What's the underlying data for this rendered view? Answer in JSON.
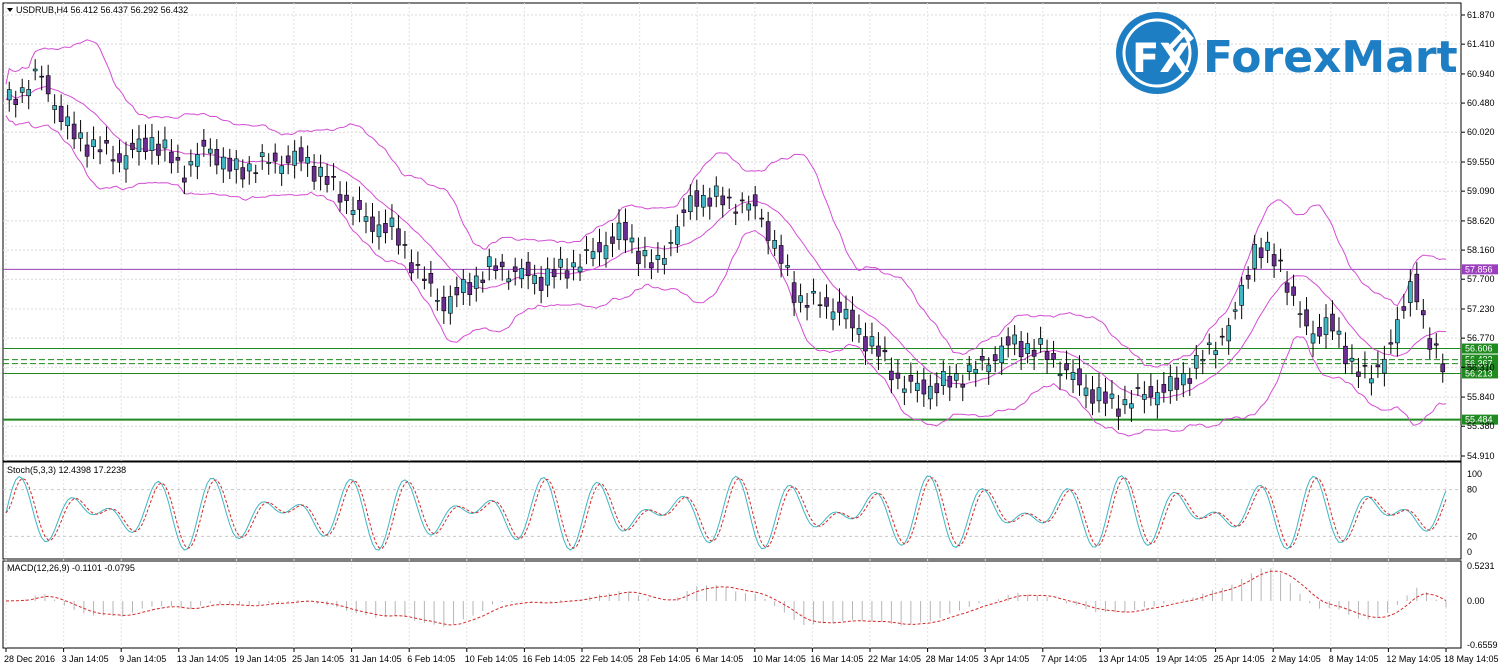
{
  "header": {
    "symbol_line": "USDRUB,H4  56.412 56.437 56.292 56.432"
  },
  "logo": {
    "word": "ForexMart",
    "badge": "FX",
    "color": "#1e7ec3"
  },
  "price_axis": {
    "ticks": [
      "61.870",
      "61.410",
      "60.940",
      "60.480",
      "60.020",
      "59.550",
      "59.090",
      "58.620",
      "58.160",
      "57.700",
      "57.230",
      "56.770",
      "56.310",
      "55.840",
      "55.380",
      "54.910"
    ],
    "range": [
      54.91,
      61.87
    ]
  },
  "price_levels": [
    {
      "label": "57.856",
      "value": 57.856,
      "color": "#9b3fbf"
    },
    {
      "label": "56.606",
      "value": 56.606,
      "color": "#1f8a1f"
    },
    {
      "label": "56.432",
      "value": 56.432,
      "color": "#1f8a1f"
    },
    {
      "label": "56.367",
      "value": 56.367,
      "color": "#1f8a1f"
    },
    {
      "label": "56.213",
      "value": 56.213,
      "color": "#1f8a1f"
    },
    {
      "label": "55.484",
      "value": 55.484,
      "color": "#1f8a1f"
    }
  ],
  "stoch": {
    "label": "Stoch(5,3,3) 12.4398 17.2238",
    "ticks": [
      "100",
      "80",
      "20",
      "0"
    ]
  },
  "macd": {
    "label": "MACD(12,26,9) -0.1101 -0.0795",
    "ticks": [
      "0.5231",
      "0.00",
      "-0.6559"
    ]
  },
  "time_axis": {
    "labels": [
      "28 Dec 2016",
      "3 Jan 14:05",
      "9 Jan 14:05",
      "13 Jan 14:05",
      "19 Jan 14:05",
      "25 Jan 14:05",
      "31 Jan 14:05",
      "6 Feb 14:05",
      "10 Feb 14:05",
      "16 Feb 14:05",
      "22 Feb 14:05",
      "28 Feb 14:05",
      "6 Mar 14:05",
      "10 Mar 14:05",
      "16 Mar 14:05",
      "22 Mar 14:05",
      "28 Mar 14:05",
      "3 Apr 14:05",
      "7 Apr 14:05",
      "13 Apr 14:05",
      "19 Apr 14:05",
      "25 Apr 14:05",
      "2 May 14:05",
      "8 May 14:05",
      "12 May 14:05",
      "18 May 14:05"
    ]
  },
  "colors": {
    "bull": "#3fb6c4",
    "bear": "#6a2c90",
    "band": "#d44dd4",
    "signal": "#d42a2a"
  },
  "chart_data": {
    "type": "candlestick",
    "symbol": "USDRUB",
    "timeframe": "H4",
    "ylim": [
      54.91,
      61.87
    ],
    "anchors": [
      [
        0,
        60.45
      ],
      [
        10,
        60.95
      ],
      [
        20,
        60.0
      ],
      [
        25,
        59.85
      ],
      [
        35,
        59.6
      ],
      [
        45,
        59.9
      ],
      [
        55,
        59.4
      ],
      [
        62,
        59.8
      ],
      [
        70,
        59.4
      ],
      [
        80,
        59.55
      ],
      [
        92,
        59.6
      ],
      [
        105,
        58.95
      ],
      [
        112,
        58.55
      ],
      [
        118,
        58.55
      ],
      [
        130,
        57.6
      ],
      [
        135,
        57.3
      ],
      [
        150,
        57.9
      ],
      [
        165,
        57.7
      ],
      [
        178,
        58.0
      ],
      [
        190,
        58.45
      ],
      [
        200,
        57.85
      ],
      [
        212,
        59.0
      ],
      [
        222,
        58.95
      ],
      [
        232,
        58.8
      ],
      [
        244,
        57.4
      ],
      [
        256,
        57.25
      ],
      [
        268,
        56.6
      ],
      [
        277,
        56.0
      ],
      [
        287,
        56.0
      ],
      [
        300,
        56.3
      ],
      [
        310,
        56.7
      ],
      [
        320,
        56.55
      ],
      [
        332,
        56.0
      ],
      [
        342,
        55.7
      ],
      [
        352,
        55.9
      ],
      [
        360,
        56.0
      ],
      [
        368,
        56.4
      ],
      [
        378,
        57.0
      ],
      [
        385,
        58.2
      ],
      [
        393,
        57.95
      ],
      [
        398,
        57.2
      ],
      [
        402,
        56.85
      ],
      [
        408,
        57.0
      ],
      [
        416,
        56.3
      ],
      [
        420,
        56.1
      ],
      [
        428,
        56.75
      ],
      [
        434,
        57.8
      ],
      [
        438,
        56.7
      ],
      [
        444,
        56.35
      ]
    ]
  }
}
